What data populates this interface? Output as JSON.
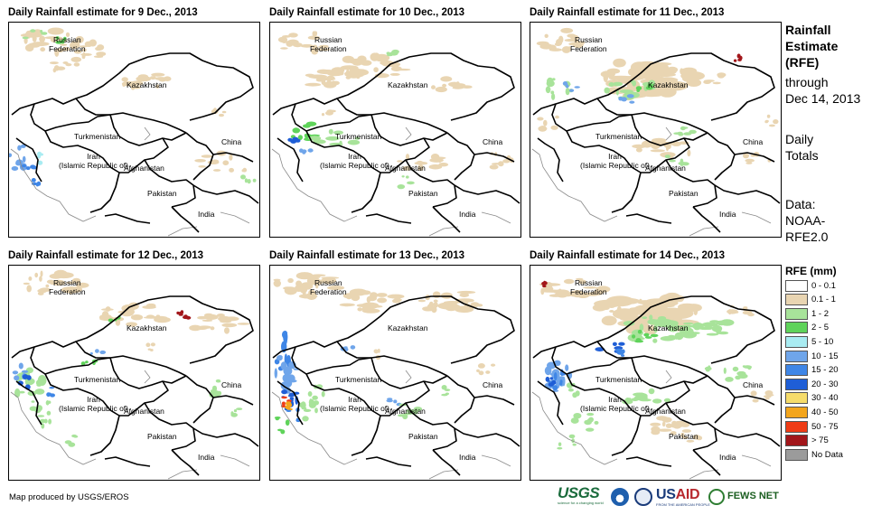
{
  "panels": [
    {
      "title": "Daily Rainfall estimate for 9 Dec., 2013",
      "labels": {
        "russia": "Russian\nFederation",
        "kazakhstan": "Kazakhstan",
        "turkmenistan": "Turkmenistan",
        "iran": "Iran\n(Islamic Republic of)",
        "afghanistan": "Afghanistan",
        "pakistan": "Pakistan",
        "china": "China",
        "india": "India"
      },
      "rain_level": "light-north"
    },
    {
      "title": "Daily Rainfall estimate for 10 Dec., 2013",
      "labels": {
        "russia": "Russian\nFederation",
        "kazakhstan": "Kazakhstan",
        "turkmenistan": "Turkmenistan",
        "iran": "Iran\n(Islamic Republic of)",
        "afghanistan": "Afghanistan",
        "pakistan": "Pakistan",
        "china": "China",
        "india": "India"
      },
      "rain_level": "central"
    },
    {
      "title": "Daily Rainfall estimate for 11 Dec., 2013",
      "labels": {
        "russia": "Russian\nFederation",
        "kazakhstan": "Kazakhstan",
        "turkmenistan": "Turkmenistan",
        "iran": "Iran\n(Islamic Republic of)",
        "afghanistan": "Afghanistan",
        "pakistan": "Pakistan",
        "china": "China",
        "india": "India"
      },
      "rain_level": "kazakh-wet"
    },
    {
      "title": "Daily Rainfall estimate for 12 Dec., 2013",
      "labels": {
        "russia": "Russian\nFederation",
        "kazakhstan": "Kazakhstan",
        "turkmenistan": "Turkmenistan",
        "iran": "Iran\n(Islamic Republic of)",
        "afghanistan": "Afghanistan",
        "pakistan": "Pakistan",
        "china": "China",
        "india": "India"
      },
      "rain_level": "west-wet"
    },
    {
      "title": "Daily Rainfall estimate for 13 Dec., 2013",
      "labels": {
        "russia": "Russian\nFederation",
        "kazakhstan": "Kazakhstan",
        "turkmenistan": "Turkmenistan",
        "iran": "Iran\n(Islamic Republic of)",
        "afghanistan": "Afghanistan",
        "pakistan": "Pakistan",
        "china": "China",
        "india": "India"
      },
      "rain_level": "iran-heavy"
    },
    {
      "title": "Daily Rainfall estimate for 14 Dec., 2013",
      "labels": {
        "russia": "Russian\nFederation",
        "kazakhstan": "Kazakhstan",
        "turkmenistan": "Turkmenistan",
        "iran": "Iran\n(Islamic Republic of)",
        "afghanistan": "Afghanistan",
        "pakistan": "Pakistan",
        "china": "China",
        "india": "India"
      },
      "rain_level": "broad"
    }
  ],
  "side": {
    "title_line1": "Rainfall",
    "title_line2": "Estimate",
    "title_line3": "(RFE)",
    "through": "through",
    "date": "Dec 14, 2013",
    "totals_line1": "Daily",
    "totals_line2": "Totals",
    "data_line1": "Data:",
    "data_line2": "NOAA-",
    "data_line3": "RFE2.0"
  },
  "legend": {
    "title": "RFE (mm)",
    "items": [
      {
        "label": "0 - 0.1",
        "color": "#ffffff"
      },
      {
        "label": "0.1 - 1",
        "color": "#e9d5b2"
      },
      {
        "label": "1 - 2",
        "color": "#a8e39a"
      },
      {
        "label": "2 - 5",
        "color": "#5fd35a"
      },
      {
        "label": "5 - 10",
        "color": "#a9ecf2"
      },
      {
        "label": "10 - 15",
        "color": "#6fa5ea"
      },
      {
        "label": "15 - 20",
        "color": "#3f86e6"
      },
      {
        "label": "20 - 30",
        "color": "#1f5ed6"
      },
      {
        "label": "30 - 40",
        "color": "#f6dc6a"
      },
      {
        "label": "40 - 50",
        "color": "#f3a51c"
      },
      {
        "label": "50 - 75",
        "color": "#ef3c16"
      },
      {
        "label": "> 75",
        "color": "#a2161a"
      },
      {
        "label": "No Data",
        "color": "#9b9b9b"
      }
    ]
  },
  "footer": {
    "credit": "Map produced by USGS/EROS",
    "usgs": "USGS",
    "usgs_tag": "science for a changing world",
    "usaid_us": "US",
    "usaid_aid": "AID",
    "usaid_tag": "FROM THE AMERICAN PEOPLE",
    "fews": "FEWS NET"
  }
}
